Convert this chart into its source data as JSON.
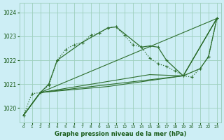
{
  "title": "Graphe pression niveau de la mer (hPa)",
  "bg_color": "#cdeef5",
  "grid_color": "#9ecfbe",
  "line_color": "#2d6e2d",
  "xlim": [
    -0.5,
    23.5
  ],
  "ylim": [
    1019.4,
    1024.4
  ],
  "yticks": [
    1020,
    1021,
    1022,
    1023,
    1024
  ],
  "xticks": [
    0,
    1,
    2,
    3,
    4,
    5,
    6,
    7,
    8,
    9,
    10,
    11,
    12,
    13,
    14,
    15,
    16,
    17,
    18,
    19,
    20,
    21,
    22,
    23
  ],
  "series_dotted": {
    "x": [
      0,
      1,
      2,
      3,
      4,
      5,
      6,
      7,
      8,
      9,
      10,
      11,
      12,
      13,
      14,
      15,
      16,
      17,
      18,
      19,
      20,
      21,
      22,
      23
    ],
    "y": [
      1019.7,
      1020.6,
      1020.65,
      1020.95,
      1022.0,
      1022.45,
      1022.65,
      1022.75,
      1023.05,
      1023.15,
      1023.35,
      1023.4,
      1023.05,
      1022.65,
      1022.55,
      1022.1,
      1021.85,
      1021.75,
      1021.55,
      1021.35,
      1021.3,
      1021.65,
      1022.15,
      1023.75
    ]
  },
  "series_solid_markers": {
    "x": [
      0,
      2,
      3,
      4,
      7,
      9,
      10,
      11,
      14,
      15,
      16,
      17,
      19,
      21,
      22,
      23
    ],
    "y": [
      1019.7,
      1020.65,
      1021.0,
      1022.0,
      1022.75,
      1023.15,
      1023.35,
      1023.4,
      1022.55,
      1022.6,
      1022.55,
      1022.0,
      1021.35,
      1021.65,
      1022.15,
      1023.75
    ]
  },
  "series_line1": {
    "x": [
      0,
      2,
      23
    ],
    "y": [
      1019.7,
      1020.65,
      1023.75
    ]
  },
  "series_line2": {
    "x": [
      0,
      2,
      15,
      19,
      23
    ],
    "y": [
      1019.7,
      1020.65,
      1021.4,
      1021.35,
      1023.75
    ]
  },
  "series_line3": {
    "x": [
      0,
      2,
      19,
      23
    ],
    "y": [
      1019.7,
      1020.65,
      1021.35,
      1023.75
    ]
  }
}
